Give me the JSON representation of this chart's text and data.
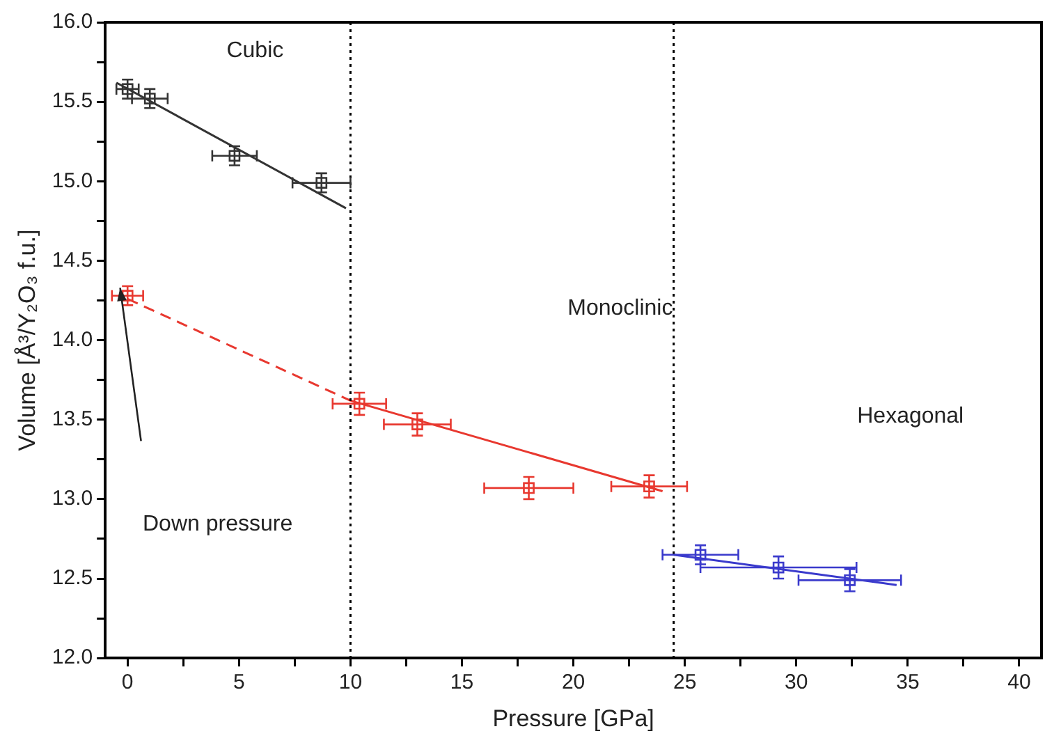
{
  "chart_data": {
    "type": "scatter",
    "xlabel": "Pressure [GPa]",
    "ylabel": "Volume [Å³/Y₂O₃ f.u.]",
    "xlim": [
      -1,
      41
    ],
    "ylim": [
      12,
      16
    ],
    "xticks": [
      0,
      {
        "value": 2.5,
        "label": null
      },
      5,
      {
        "value": 7.5,
        "label": null
      },
      10,
      {
        "value": 12.5,
        "label": null
      },
      15,
      {
        "value": 17.5,
        "label": null
      },
      20,
      {
        "value": 22.5,
        "label": null
      },
      25,
      {
        "value": 27.5,
        "label": null
      },
      30,
      {
        "value": 32.5,
        "label": null
      },
      35,
      {
        "value": 37.5,
        "label": null
      },
      40
    ],
    "yticks": [
      {
        "value": 12,
        "label": "12.0"
      },
      {
        "value": 12.25,
        "label": null
      },
      {
        "value": 12.5,
        "label": "12.5"
      },
      {
        "value": 12.75,
        "label": null
      },
      {
        "value": 13,
        "label": "13.0"
      },
      {
        "value": 13.25,
        "label": null
      },
      {
        "value": 13.5,
        "label": "13.5"
      },
      {
        "value": 13.75,
        "label": null
      },
      {
        "value": 14,
        "label": "14.0"
      },
      {
        "value": 14.25,
        "label": null
      },
      {
        "value": 14.5,
        "label": "14.5"
      },
      {
        "value": 14.75,
        "label": null
      },
      {
        "value": 15,
        "label": "15.0"
      },
      {
        "value": 15.25,
        "label": null
      },
      {
        "value": 15.5,
        "label": "15.5"
      },
      {
        "value": 15.75,
        "label": null
      },
      {
        "value": 16,
        "label": "16.0"
      }
    ],
    "grid": false,
    "legend": false,
    "series": [
      {
        "marker": "square",
        "color": "#333333",
        "x": [
          0,
          1,
          4.8,
          8.7
        ],
        "values": [
          15.58,
          15.52,
          15.16,
          14.99
        ],
        "errors": [
          0.06,
          0.06,
          0.06,
          0.06
        ],
        "xerrors": [
          0.5,
          0.8,
          1,
          1.3
        ]
      },
      {
        "type": "line",
        "marker": "none",
        "line_style": "solid",
        "color": "#333333",
        "x": [
          -0.5,
          9.8
        ],
        "values": [
          15.62,
          14.83
        ]
      },
      {
        "marker": "square",
        "color": "#e8382f",
        "x": [
          0,
          10.4,
          13,
          18,
          23.4
        ],
        "values": [
          14.28,
          13.6,
          13.47,
          13.07,
          13.08
        ],
        "errors": [
          0.06,
          0.07,
          0.07,
          0.07,
          0.07
        ],
        "xerrors": [
          0.7,
          1.2,
          1.5,
          2,
          1.7
        ]
      },
      {
        "type": "line",
        "marker": "none",
        "line_style": "dashed",
        "color": "#e8382f",
        "x": [
          0,
          10
        ],
        "values": [
          14.26,
          13.62
        ]
      },
      {
        "type": "line",
        "marker": "none",
        "line_style": "solid",
        "color": "#e8382f",
        "x": [
          10,
          24
        ],
        "values": [
          13.62,
          13.05
        ]
      },
      {
        "marker": "square",
        "color": "#3a3acc",
        "x": [
          25.7,
          29.2,
          32.4
        ],
        "values": [
          12.65,
          12.57,
          12.49
        ],
        "errors": [
          0.06,
          0.07,
          0.07
        ],
        "xerrors": [
          1.7,
          3.5,
          2.3
        ]
      },
      {
        "type": "line",
        "marker": "none",
        "line_style": "solid",
        "color": "#3a3acc",
        "x": [
          24.5,
          34.5
        ],
        "values": [
          12.65,
          12.46
        ]
      }
    ],
    "ref_lines": [
      {
        "axis": "x",
        "value": 10,
        "line_style": "dotted",
        "color": "#000000"
      },
      {
        "axis": "x",
        "value": 24.5,
        "line_style": "dotted",
        "color": "#000000"
      }
    ],
    "annotations": [
      "Cubic",
      "Monoclinic",
      "Hexagonal",
      "Down pressure"
    ]
  }
}
